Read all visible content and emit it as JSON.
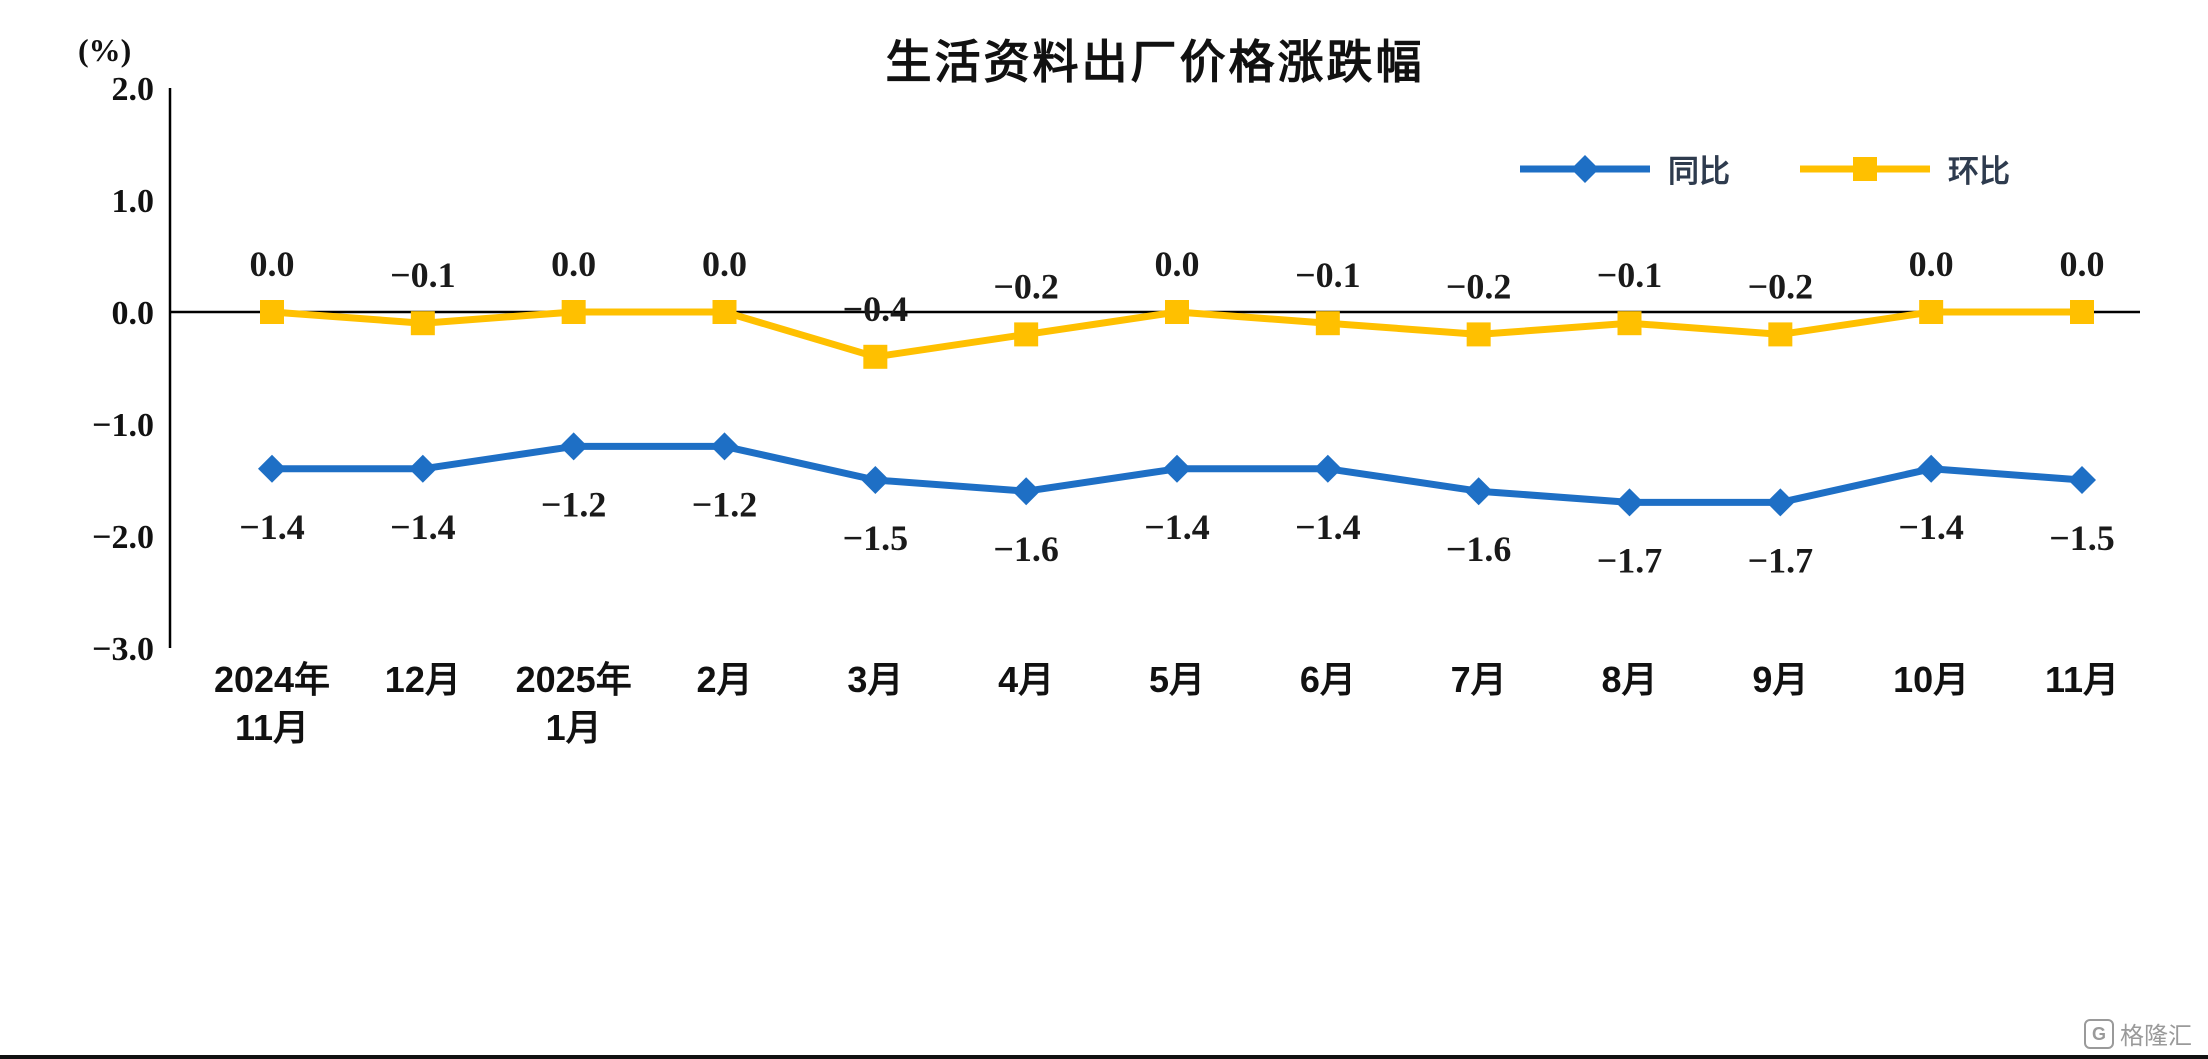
{
  "title": "生活资料出厂价格涨跌幅",
  "y_axis_unit": "(%)",
  "watermark": "格隆汇",
  "chart_data": {
    "type": "line",
    "categories": [
      [
        "2024年",
        "11月"
      ],
      [
        "12月"
      ],
      [
        "2025年",
        "1月"
      ],
      [
        "2月"
      ],
      [
        "3月"
      ],
      [
        "4月"
      ],
      [
        "5月"
      ],
      [
        "6月"
      ],
      [
        "7月"
      ],
      [
        "8月"
      ],
      [
        "9月"
      ],
      [
        "10月"
      ],
      [
        "11月"
      ]
    ],
    "series": [
      {
        "name": "同比",
        "color": "#1E6FC5",
        "marker": "diamond",
        "label_position": "below",
        "values": [
          -1.4,
          -1.4,
          -1.2,
          -1.2,
          -1.5,
          -1.6,
          -1.4,
          -1.4,
          -1.6,
          -1.7,
          -1.7,
          -1.4,
          -1.5
        ]
      },
      {
        "name": "环比",
        "color": "#FFC000",
        "marker": "square",
        "label_position": "above",
        "values": [
          0.0,
          -0.1,
          0.0,
          0.0,
          -0.4,
          -0.2,
          0.0,
          -0.1,
          -0.2,
          -0.1,
          -0.2,
          0.0,
          0.0
        ]
      }
    ],
    "ylim": [
      -3.0,
      2.0
    ],
    "yticks": [
      2.0,
      1.0,
      0.0,
      -1.0,
      -2.0,
      -3.0
    ],
    "grid": false,
    "legend_position": "top-right",
    "xlabel": "",
    "ylabel": "(%)"
  }
}
